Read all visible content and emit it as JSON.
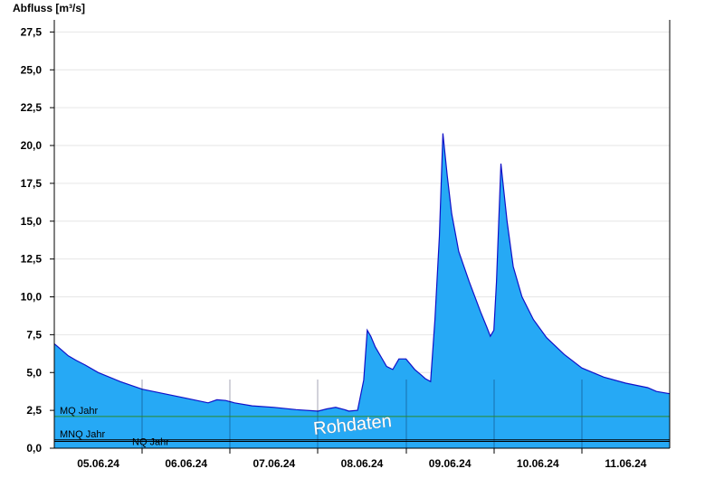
{
  "chart_data": {
    "type": "area",
    "ylabel": "Abfluss [m³/s]",
    "ylim": [
      0,
      28.3
    ],
    "yticks": [
      0,
      2.5,
      5,
      7.5,
      10,
      12.5,
      15,
      17.5,
      20,
      22.5,
      25,
      27.5
    ],
    "ytick_labels": [
      "0,0",
      "2,5",
      "5,0",
      "7,5",
      "10,0",
      "12,5",
      "15,0",
      "17,5",
      "20,0",
      "22,5",
      "25,0",
      "27,5"
    ],
    "xlim": [
      0,
      7
    ],
    "x_tick_labels": [
      "05.06.24",
      "06.06.24",
      "07.06.24",
      "08.06.24",
      "09.06.24",
      "10.06.24",
      "11.06.24"
    ],
    "grid": "horizontal",
    "fill_color": "#26a9f5",
    "line_color": "#1010c8",
    "reference_lines": [
      {
        "label": "MQ Jahr",
        "value": 2.1,
        "color": "#2a8a2a"
      },
      {
        "label": "MNQ Jahr",
        "value": 0.55,
        "color": "#000000"
      },
      {
        "label": "NQ Jahr",
        "value": 0.45,
        "color": "#000000"
      }
    ],
    "watermark": "Rohdaten",
    "series": [
      {
        "x": [
          0.0,
          0.08,
          0.16,
          0.25,
          0.35,
          0.5,
          0.75,
          1.0,
          1.25,
          1.5,
          1.75,
          1.85,
          1.95,
          2.05,
          2.25,
          2.5,
          2.75,
          3.0,
          3.1,
          3.2,
          3.3,
          3.35,
          3.45,
          3.52,
          3.56,
          3.6,
          3.65,
          3.72,
          3.78,
          3.85,
          3.92,
          4.0,
          4.1,
          4.18,
          4.22,
          4.28,
          4.33,
          4.38,
          4.42,
          4.47,
          4.52,
          4.6,
          4.72,
          4.85,
          4.92,
          4.96,
          5.0,
          5.03,
          5.08,
          5.15,
          5.22,
          5.32,
          5.45,
          5.6,
          5.8,
          6.0,
          6.25,
          6.5,
          6.75,
          6.85,
          7.0
        ],
        "y": [
          6.9,
          6.5,
          6.1,
          5.8,
          5.5,
          5.0,
          4.4,
          3.9,
          3.6,
          3.3,
          3.0,
          3.2,
          3.15,
          3.0,
          2.8,
          2.7,
          2.55,
          2.45,
          2.6,
          2.7,
          2.55,
          2.45,
          2.5,
          4.5,
          7.8,
          7.4,
          6.7,
          6.0,
          5.4,
          5.2,
          5.9,
          5.9,
          5.2,
          4.8,
          4.6,
          4.4,
          8.5,
          14.0,
          20.8,
          18.0,
          15.5,
          13.0,
          11.0,
          9.0,
          8.0,
          7.4,
          7.8,
          11.0,
          18.8,
          15.0,
          12.0,
          10.0,
          8.5,
          7.3,
          6.2,
          5.3,
          4.7,
          4.3,
          4.0,
          3.75,
          3.6
        ]
      }
    ]
  }
}
